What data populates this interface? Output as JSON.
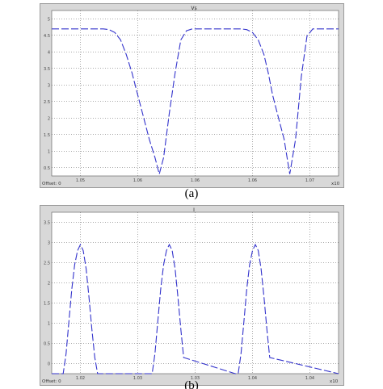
{
  "chart_data": [
    {
      "type": "line",
      "title": "Vs",
      "status_text": "Offset: 0",
      "x_exponent": "x10",
      "x_ticks": [
        "1.05",
        "1.06",
        "1.06",
        "1.06",
        "1.07"
      ],
      "y_ticks": [
        "5",
        "4.5",
        "4",
        "3.5",
        "3",
        "2.5",
        "2",
        "1.5",
        "1",
        "0.5"
      ],
      "xlim": [
        0,
        100
      ],
      "ylim": [
        0.5,
        5
      ],
      "grid": true,
      "line_color": "#3333cc",
      "series": [
        {
          "x": [
            0,
            18,
            20,
            22,
            24,
            26,
            28,
            30,
            32,
            34,
            36,
            37.5,
            39,
            41,
            43,
            45,
            47,
            49,
            50.5,
            52,
            54,
            56,
            58,
            60,
            62,
            64,
            66,
            68,
            70,
            72,
            74,
            75.5,
            77,
            79,
            81,
            83,
            85,
            87,
            89,
            91,
            93,
            95,
            97,
            100
          ],
          "y": [
            4.5,
            4.5,
            4.48,
            4.4,
            4.2,
            3.8,
            3.3,
            2.7,
            2.1,
            1.5,
            1.0,
            0.55,
            1.0,
            2.2,
            3.3,
            4.2,
            4.45,
            4.5,
            4.5,
            4.5,
            4.5,
            4.5,
            4.5,
            4.5,
            4.5,
            4.5,
            4.5,
            4.48,
            4.4,
            4.2,
            3.8,
            3.3,
            2.7,
            2.1,
            1.5,
            0.55,
            1.5,
            3.2,
            4.3,
            4.5,
            4.5,
            4.5,
            4.5,
            4.5
          ]
        }
      ]
    },
    {
      "type": "line",
      "title": "I",
      "status_text": "Offset: 0",
      "x_exponent": "x10",
      "x_ticks": [
        "1.02",
        "1.03",
        "1.03",
        "1.04",
        "1.04"
      ],
      "y_ticks": [
        "3.5",
        "3",
        "2.5",
        "2",
        "1.5",
        "1",
        "0.5",
        "0"
      ],
      "xlim": [
        0,
        100
      ],
      "ylim": [
        0,
        4
      ],
      "grid": true,
      "line_color": "#3333cc",
      "series": [
        {
          "x": [
            0,
            4,
            5,
            6,
            7,
            8,
            9,
            10,
            11,
            12,
            13,
            14,
            15,
            16,
            34,
            35,
            36,
            37,
            38,
            39,
            40,
            41,
            42,
            43,
            44,
            45,
            46,
            64,
            65,
            66,
            67,
            68,
            69,
            70,
            71,
            72,
            73,
            74,
            75,
            76,
            100
          ],
          "y": [
            0,
            0,
            0.5,
            1.3,
            2.1,
            2.7,
            3.05,
            3.2,
            3.05,
            2.6,
            1.9,
            1.1,
            0.4,
            0,
            0,
            0,
            0.5,
            1.3,
            2.1,
            2.7,
            3.05,
            3.2,
            3.05,
            2.6,
            1.9,
            1.1,
            0.4,
            0,
            0,
            0.5,
            1.3,
            2.1,
            2.7,
            3.05,
            3.2,
            3.05,
            2.6,
            1.9,
            1.1,
            0.4,
            0
          ]
        }
      ]
    }
  ],
  "captions": {
    "a": "(a)",
    "b": "(b)"
  }
}
